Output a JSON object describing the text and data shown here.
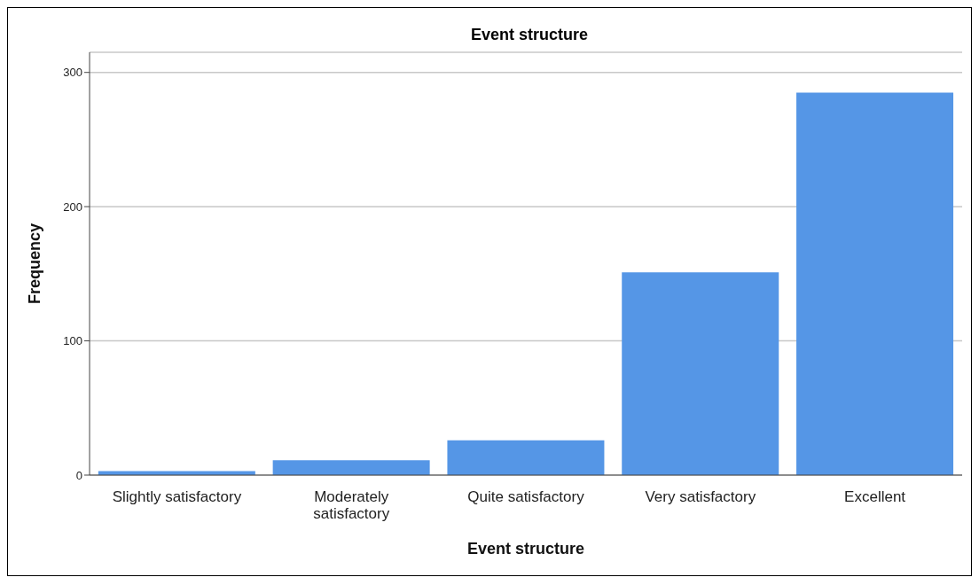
{
  "chart_data": {
    "type": "bar",
    "title": "Event structure",
    "xlabel": "Event structure",
    "ylabel": "Frequency",
    "categories": [
      "Slightly satisfactory",
      "Moderately satisfactory",
      "Quite satisfactory",
      "Very satisfactory",
      "Excellent"
    ],
    "values": [
      3,
      11,
      26,
      151,
      285
    ],
    "color": "#5596e6",
    "ylim": [
      0,
      315
    ],
    "yticks": [
      0,
      100,
      200,
      300
    ],
    "grid": "y"
  }
}
